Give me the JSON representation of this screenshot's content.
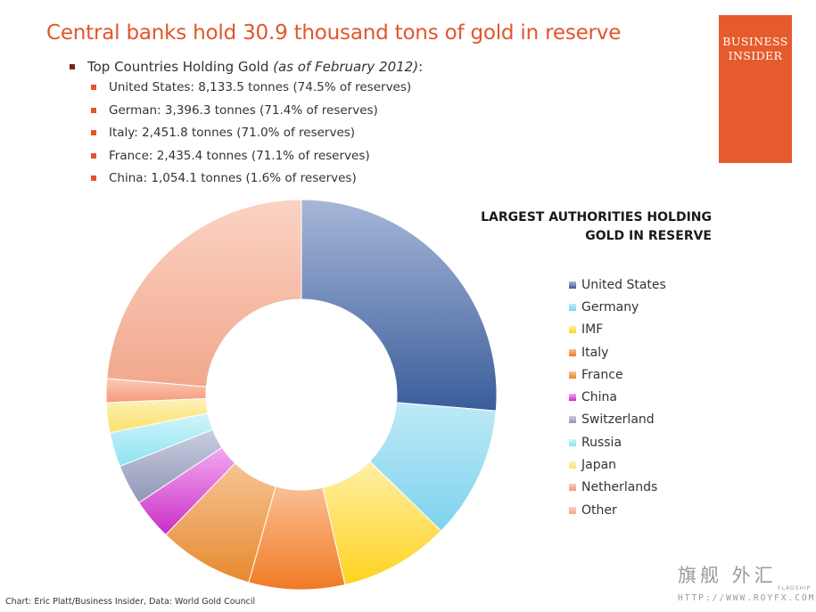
{
  "header": {
    "title": "Central banks hold 30.9 thousand tons of gold in reserve",
    "logo_line1": "BUSINESS",
    "logo_line2": "INSIDER"
  },
  "bullets": {
    "main_label": "Top Countries Holding Gold ",
    "main_note": "(as of February 2012)",
    "main_suffix": ":",
    "items": [
      "United States: 8,133.5 tonnes (74.5% of reserves)",
      "German: 3,396.3 tonnes (71.4% of reserves)",
      "Italy: 2,451.8 tonnes (71.0% of reserves)",
      "France: 2,435.4 tonnes (71.1% of reserves)",
      "China: 1,054.1 tonnes (1.6% of reserves)"
    ]
  },
  "source": "Chart: Eric Platt/Business Insider, Data: World Gold Council",
  "watermark": {
    "chinese": "旗舰 外汇",
    "flagship": "FLAGSHIP",
    "url": "HTTP://WWW.ROYFX.COM"
  },
  "chart_data": {
    "type": "pie",
    "donut": true,
    "title": "LARGEST AUTHORITIES HOLDING GOLD IN RESERVE",
    "title_lines": [
      "LARGEST AUTHORITIES HOLDING",
      "GOLD IN RESERVE"
    ],
    "legend_position": "right",
    "categories": [
      "United States",
      "Germany",
      "IMF",
      "Italy",
      "France",
      "China",
      "Switzerland",
      "Russia",
      "Japan",
      "Netherlands",
      "Other"
    ],
    "values": [
      8133.5,
      3396.3,
      2814.0,
      2451.8,
      2435.4,
      1054.1,
      1040.1,
      883.0,
      765.2,
      612.5,
      7314.1
    ],
    "colors": [
      [
        "#3a5d9a",
        "#a6b7d8"
      ],
      [
        "#7dd3ee",
        "#bfe9f7"
      ],
      [
        "#ffd21f",
        "#fff0a6"
      ],
      [
        "#f07a24",
        "#fbbf94"
      ],
      [
        "#e8892e",
        "#f6c495"
      ],
      [
        "#c82ec6",
        "#f4a8f1"
      ],
      [
        "#8f97b5",
        "#c9cde0"
      ],
      [
        "#8ce3f2",
        "#d2f4fa"
      ],
      [
        "#fbe06a",
        "#fdf1b8"
      ],
      [
        "#f5997a",
        "#fbcbb8"
      ],
      [
        "#f1a78d",
        "#fbd3c3"
      ]
    ]
  }
}
